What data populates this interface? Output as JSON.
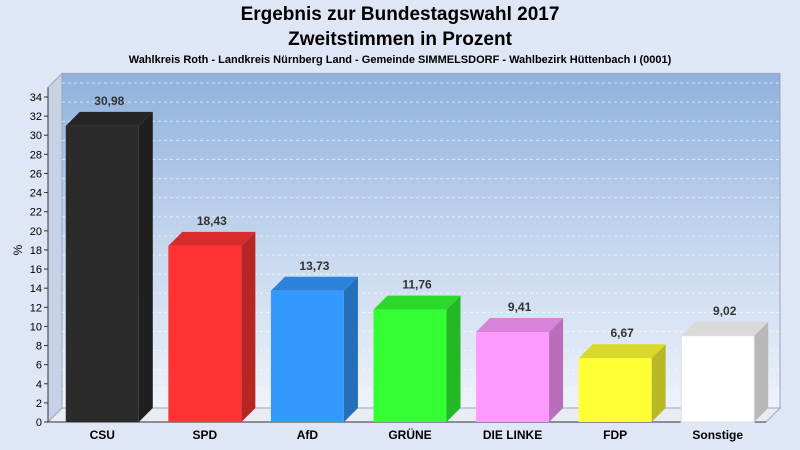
{
  "chart_data": {
    "type": "bar",
    "title": "Ergebnis zur Bundestagswahl 2017",
    "subtitle": "Zweitstimmen in Prozent",
    "caption": "Wahlkreis Roth - Landkreis Nürnberg Land - Gemeinde SIMMELSDORF - Wahlbezirk Hüttenbach I (0001)",
    "xlabel": "",
    "ylabel": "%",
    "ylim": [
      0,
      35
    ],
    "yticks": [
      0,
      2,
      4,
      6,
      8,
      10,
      12,
      14,
      16,
      18,
      20,
      22,
      24,
      26,
      28,
      30,
      32,
      34
    ],
    "categories": [
      "CSU",
      "SPD",
      "AfD",
      "GRÜNE",
      "DIE LINKE",
      "FDP",
      "Sonstige"
    ],
    "values": [
      30.98,
      18.43,
      13.73,
      11.76,
      9.41,
      6.67,
      9.02
    ],
    "value_labels": [
      "30,98",
      "18,43",
      "13,73",
      "11,76",
      "9,41",
      "6,67",
      "9,02"
    ],
    "colors": [
      "#2b2b2b",
      "#ff3333",
      "#3399ff",
      "#33ff33",
      "#ff99ff",
      "#ffff33",
      "#ffffff"
    ],
    "grid": true,
    "legend": "none"
  }
}
